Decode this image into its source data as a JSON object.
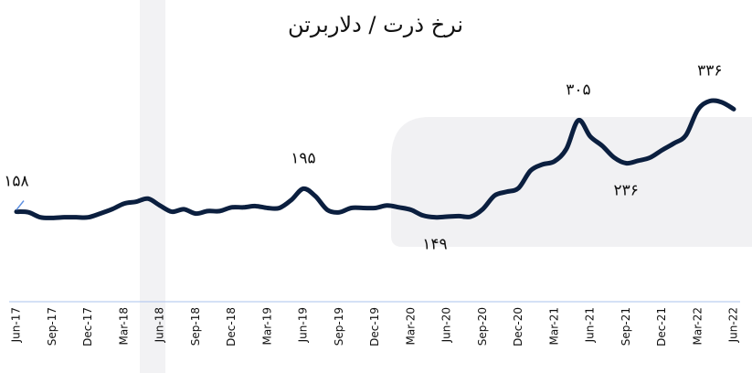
{
  "chart_data": {
    "type": "line",
    "title": "نرخ ذرت / دلاربرتن",
    "categories": [
      "Jun-17",
      null,
      null,
      "Sep-17",
      null,
      null,
      "Dec-17",
      null,
      null,
      "Mar-18",
      null,
      null,
      "Jun-18",
      null,
      null,
      "Sep-18",
      null,
      null,
      "Dec-18",
      null,
      null,
      "Mar-19",
      null,
      null,
      "Jun-19",
      null,
      null,
      "Sep-19",
      null,
      null,
      "Dec-19",
      null,
      null,
      "Mar-20",
      null,
      null,
      "Jun-20",
      null,
      null,
      "Sep-20",
      null,
      null,
      "Dec-20",
      null,
      null,
      "Mar-21",
      null,
      null,
      "Jun-21",
      null,
      null,
      "Sep-21",
      null,
      null,
      "Dec-21",
      null,
      null,
      "Mar-22",
      null,
      null,
      "Jun-22"
    ],
    "values": [
      158,
      157,
      149,
      148,
      149,
      149,
      149,
      155,
      162,
      171,
      174,
      179,
      168,
      158,
      162,
      155,
      159,
      159,
      165,
      165,
      167,
      164,
      164,
      177,
      195,
      183,
      161,
      157,
      164,
      164,
      164,
      168,
      165,
      161,
      152,
      149,
      150,
      151,
      150,
      162,
      184,
      190,
      196,
      224,
      234,
      239,
      259,
      305,
      279,
      264,
      245,
      236,
      240,
      245,
      257,
      268,
      281,
      322,
      336,
      334,
      323
    ],
    "value_labels": [
      "۱۵۸",
      null,
      null,
      null,
      null,
      null,
      null,
      null,
      null,
      null,
      null,
      null,
      null,
      null,
      null,
      null,
      null,
      null,
      null,
      null,
      null,
      null,
      null,
      null,
      "۱۹۵",
      null,
      null,
      null,
      null,
      null,
      null,
      null,
      null,
      null,
      null,
      "۱۴۹",
      null,
      null,
      null,
      null,
      null,
      null,
      null,
      null,
      null,
      null,
      null,
      "۳۰۵",
      null,
      null,
      null,
      "۲۳۶",
      null,
      null,
      null,
      null,
      null,
      null,
      "۳۳۶",
      null,
      null
    ],
    "color": "#0b1f3f",
    "ylim": [
      0,
      400
    ]
  }
}
